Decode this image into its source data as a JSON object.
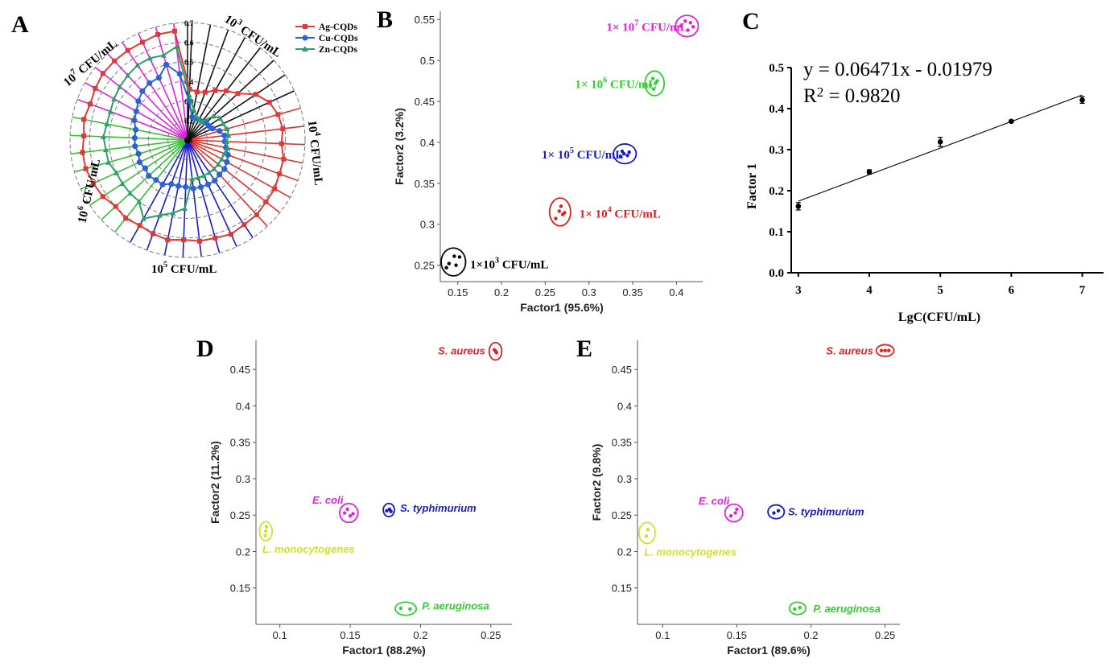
{
  "panels": {
    "A": {
      "letter": "A"
    },
    "B": {
      "letter": "B"
    },
    "C": {
      "letter": "C"
    },
    "D": {
      "letter": "D"
    },
    "E": {
      "letter": "E"
    }
  },
  "chart_data": [
    {
      "panel": "A",
      "type": "radar",
      "radial_ticks": [
        "0.1",
        "0.2",
        "0.3",
        "0.4",
        "0.5",
        "0.6",
        "0.7"
      ],
      "rmin": 0.1,
      "rmax": 0.7,
      "group_labels": [
        {
          "pre": "10",
          "sup": "3",
          "post": " CFU/mL"
        },
        {
          "pre": "10",
          "sup": "4",
          "post": " CFU/mL"
        },
        {
          "pre": "10",
          "sup": "5",
          "post": " CFU/mL"
        },
        {
          "pre": "10",
          "sup": "6",
          "post": " CFU/mL"
        },
        {
          "pre": "10",
          "sup": "7",
          "post": " CFU/mL"
        }
      ],
      "group_colors": [
        "#111111",
        "#e03030",
        "#1a1acc",
        "#30c030",
        "#e020e0"
      ],
      "series_colors": {
        "Ag-CQDs": "#e03838",
        "Cu-CQDs": "#2b62d6",
        "Zn-CQDs": "#2f9e6a"
      },
      "legend": [
        {
          "name": "Ag-CQDs",
          "color": "#e03838",
          "marker": "square"
        },
        {
          "name": "Cu-CQDs",
          "color": "#2b62d6",
          "marker": "circle"
        },
        {
          "name": "Zn-CQDs",
          "color": "#2f9e6a",
          "marker": "triangle"
        }
      ],
      "series": [
        {
          "name": "Ag-CQDs",
          "values": [
            0.36,
            0.35,
            0.36,
            0.39,
            0.42,
            0.45,
            0.52,
            0.56,
            0.58,
            0.59,
            0.58,
            0.6,
            0.6,
            0.61,
            0.61,
            0.62,
            0.62,
            0.63,
            0.62,
            0.62,
            0.61,
            0.62,
            0.61,
            0.6,
            0.61,
            0.6,
            0.62,
            0.63,
            0.64,
            0.64,
            0.63,
            0.64,
            0.63,
            0.64,
            0.65,
            0.65,
            0.65,
            0.65,
            0.66,
            0.66
          ]
        },
        {
          "name": "Cu-CQDs",
          "values": [
            0.3,
            0.22,
            0.22,
            0.22,
            0.22,
            0.23,
            0.23,
            0.24,
            0.27,
            0.29,
            0.29,
            0.3,
            0.32,
            0.33,
            0.34,
            0.34,
            0.35,
            0.35,
            0.35,
            0.35,
            0.34,
            0.34,
            0.34,
            0.36,
            0.36,
            0.37,
            0.36,
            0.37,
            0.36,
            0.37,
            0.37,
            0.37,
            0.39,
            0.4,
            0.42,
            0.44,
            0.45,
            0.45,
            0.5,
            0.44
          ]
        },
        {
          "name": "Zn-CQDs",
          "values": [
            0.33,
            0.26,
            0.23,
            0.22,
            0.22,
            0.28,
            0.3,
            0.3,
            0.31,
            0.31,
            0.3,
            0.31,
            0.3,
            0.3,
            0.3,
            0.3,
            0.3,
            0.3,
            0.3,
            0.3,
            0.45,
            0.48,
            0.51,
            0.56,
            0.5,
            0.5,
            0.5,
            0.5,
            0.52,
            0.52,
            0.53,
            0.52,
            0.52,
            0.53,
            0.54,
            0.55,
            0.56,
            0.56,
            0.55,
            0.58
          ]
        }
      ]
    },
    {
      "panel": "B",
      "type": "scatter",
      "xlabel": "Factor1 (95.6%)",
      "ylabel": "Factor2 (3.2%)",
      "xlim": [
        0.13,
        0.43
      ],
      "ylim": [
        0.23,
        0.56
      ],
      "xticks": [
        0.15,
        0.2,
        0.25,
        0.3,
        0.35,
        0.4
      ],
      "xtick_labels": [
        "0.15",
        "0.2",
        "0.25",
        "0.3",
        "0.35",
        "0.4"
      ],
      "yticks": [
        0.25,
        0.3,
        0.35,
        0.4,
        0.45,
        0.5,
        0.55
      ],
      "ytick_labels": [
        "0.25",
        "0.3",
        "0.35",
        "0.4",
        "0.45",
        "0.5",
        "0.55"
      ],
      "groups": [
        {
          "label": "1×10",
          "sup": "3",
          "post": " CFU/mL",
          "color": "#000000",
          "points": [
            [
              0.137,
              0.247
            ],
            [
              0.14,
              0.252
            ],
            [
              0.146,
              0.261
            ],
            [
              0.148,
              0.25
            ],
            [
              0.152,
              0.26
            ]
          ],
          "ellipse": [
            0.145,
            0.254,
            0.014,
            0.017
          ],
          "label_pos": [
            0.164,
            0.252
          ]
        },
        {
          "label": "1× 10",
          "sup": "4",
          "post": " CFU/mL",
          "color": "#e02020",
          "points": [
            [
              0.262,
              0.307
            ],
            [
              0.266,
              0.316
            ],
            [
              0.27,
              0.312
            ],
            [
              0.268,
              0.322
            ],
            [
              0.272,
              0.314
            ]
          ],
          "ellipse": [
            0.267,
            0.315,
            0.012,
            0.017
          ],
          "label_pos": [
            0.289,
            0.314
          ]
        },
        {
          "label": "1× 10",
          "sup": "5",
          "post": " CFU/mL",
          "color": "#1a1acc",
          "points": [
            [
              0.336,
              0.383
            ],
            [
              0.34,
              0.386
            ],
            [
              0.344,
              0.384
            ],
            [
              0.346,
              0.388
            ],
            [
              0.338,
              0.389
            ]
          ],
          "ellipse": [
            0.341,
            0.386,
            0.013,
            0.012
          ],
          "label_pos": [
            0.246,
            0.386
          ]
        },
        {
          "label": "1× 10",
          "sup": "6",
          "post": " CFU/mL",
          "color": "#30d030",
          "points": [
            [
              0.37,
              0.47
            ],
            [
              0.373,
              0.478
            ],
            [
              0.376,
              0.472
            ],
            [
              0.374,
              0.465
            ],
            [
              0.378,
              0.475
            ]
          ],
          "ellipse": [
            0.375,
            0.472,
            0.011,
            0.015
          ],
          "label_pos": [
            0.284,
            0.472
          ]
        },
        {
          "label": "1× 10",
          "sup": "7",
          "post": " CFU/mL",
          "color": "#e020e0",
          "points": [
            [
              0.405,
              0.542
            ],
            [
              0.41,
              0.548
            ],
            [
              0.413,
              0.537
            ],
            [
              0.416,
              0.546
            ],
            [
              0.419,
              0.541
            ]
          ],
          "ellipse": [
            0.412,
            0.542,
            0.013,
            0.013
          ],
          "label_pos": [
            0.32,
            0.542
          ]
        }
      ]
    },
    {
      "panel": "C",
      "type": "scatter-fit",
      "xlabel": "LgC(CFU/mL)",
      "ylabel": "Factor 1",
      "xlim": [
        2.9,
        7.3
      ],
      "ylim": [
        0,
        0.5
      ],
      "xticks": [
        3,
        4,
        5,
        6,
        7
      ],
      "xtick_labels": [
        "3",
        "4",
        "5",
        "6",
        "7"
      ],
      "yticks": [
        0,
        0.1,
        0.2,
        0.3,
        0.4,
        0.5
      ],
      "ytick_labels": [
        "0.0",
        "0.1",
        "0.2",
        "0.3",
        "0.4",
        "0.5"
      ],
      "x": [
        3,
        4,
        5,
        6,
        7
      ],
      "y": [
        0.162,
        0.246,
        0.319,
        0.369,
        0.421
      ],
      "yerr": [
        0.009,
        0.005,
        0.011,
        0.003,
        0.008
      ],
      "fit": {
        "slope": 0.06471,
        "intercept": -0.01979
      },
      "equation": "y = 0.06471x - 0.01979",
      "r2_prefix": "R",
      "r2_sup": "2",
      "r2_suffix": " = 0.9820"
    },
    {
      "panel": "D",
      "type": "scatter",
      "xlabel": "Factor1 (88.2%)",
      "ylabel": "Factor2 (11.2%)",
      "xlim": [
        0.083,
        0.265
      ],
      "ylim": [
        0.1,
        0.49
      ],
      "xticks": [
        0.1,
        0.15,
        0.2,
        0.25
      ],
      "xtick_labels": [
        "0.1",
        "0.15",
        "0.2",
        "0.25"
      ],
      "yticks": [
        0.15,
        0.2,
        0.25,
        0.3,
        0.35,
        0.4,
        0.45
      ],
      "ytick_labels": [
        "0.15",
        "0.2",
        "0.25",
        "0.3",
        "0.35",
        "0.4",
        "0.45"
      ],
      "groups": [
        {
          "label": "S. aureus",
          "color": "#e02020",
          "points": [
            [
              0.2525,
              0.477
            ],
            [
              0.2535,
              0.475
            ],
            [
              0.254,
              0.473
            ]
          ],
          "ellipse": [
            0.2533,
            0.475,
            0.0045,
            0.012
          ],
          "label_pos": [
            0.246,
            0.476
          ],
          "anchor": "end"
        },
        {
          "label": "E. coli",
          "color": "#e020e0",
          "points": [
            [
              0.146,
              0.253
            ],
            [
              0.148,
              0.258
            ],
            [
              0.15,
              0.249
            ],
            [
              0.152,
              0.252
            ]
          ],
          "ellipse": [
            0.149,
            0.253,
            0.0065,
            0.013
          ],
          "label_pos": [
            0.145,
            0.271
          ],
          "anchor": "end"
        },
        {
          "label": "S. typhimurium",
          "color": "#1a1acc",
          "points": [
            [
              0.176,
              0.256
            ],
            [
              0.178,
              0.258
            ],
            [
              0.179,
              0.255
            ]
          ],
          "ellipse": [
            0.1775,
            0.257,
            0.004,
            0.009
          ],
          "label_pos": [
            0.1855,
            0.26
          ],
          "anchor": "start"
        },
        {
          "label": "L. monocytogenes",
          "color": "#d0e030",
          "points": [
            [
              0.0895,
              0.222
            ],
            [
              0.09,
              0.228
            ],
            [
              0.0905,
              0.234
            ]
          ],
          "ellipse": [
            0.09,
            0.228,
            0.0045,
            0.013
          ],
          "label_pos": [
            0.0875,
            0.204
          ],
          "anchor": "start"
        },
        {
          "label": "P. aeruginosa",
          "color": "#30d030",
          "points": [
            [
              0.186,
              0.122
            ],
            [
              0.1925,
              0.121
            ]
          ],
          "ellipse": [
            0.1895,
            0.1215,
            0.0075,
            0.009
          ],
          "label_pos": [
            0.201,
            0.126
          ],
          "anchor": "start"
        }
      ]
    },
    {
      "panel": "E",
      "type": "scatter",
      "xlabel": "Factor1 (89.6%)",
      "ylabel": "Factor2 (9.8%)",
      "xlim": [
        0.083,
        0.26
      ],
      "ylim": [
        0.1,
        0.49
      ],
      "xticks": [
        0.1,
        0.15,
        0.2,
        0.25
      ],
      "xtick_labels": [
        "0.1",
        "0.15",
        "0.2",
        "0.25"
      ],
      "yticks": [
        0.15,
        0.2,
        0.25,
        0.3,
        0.35,
        0.4,
        0.45
      ],
      "ytick_labels": [
        "0.15",
        "0.2",
        "0.25",
        "0.3",
        "0.35",
        "0.4",
        "0.45"
      ],
      "groups": [
        {
          "label": "S. aureus",
          "color": "#e02020",
          "points": [
            [
              0.2475,
              0.476
            ],
            [
              0.25,
              0.476
            ],
            [
              0.2525,
              0.476
            ]
          ],
          "ellipse": [
            0.25,
            0.476,
            0.006,
            0.008
          ],
          "label_pos": [
            0.242,
            0.476
          ],
          "anchor": "end"
        },
        {
          "label": "E. coli",
          "color": "#e020e0",
          "points": [
            [
              0.146,
              0.249
            ],
            [
              0.149,
              0.253
            ],
            [
              0.15,
              0.258
            ]
          ],
          "ellipse": [
            0.148,
            0.253,
            0.006,
            0.012
          ],
          "label_pos": [
            0.145,
            0.27
          ],
          "anchor": "end"
        },
        {
          "label": "S. typhimurium",
          "color": "#1a1acc",
          "points": [
            [
              0.175,
              0.253
            ],
            [
              0.178,
              0.256
            ]
          ],
          "ellipse": [
            0.1765,
            0.2545,
            0.0055,
            0.0095
          ],
          "label_pos": [
            0.1845,
            0.255
          ],
          "anchor": "start"
        },
        {
          "label": "L. monocytogenes",
          "color": "#d0e030",
          "points": [
            [
              0.089,
              0.221
            ],
            [
              0.09,
              0.23
            ]
          ],
          "ellipse": [
            0.0895,
            0.2255,
            0.0055,
            0.0145
          ],
          "label_pos": [
            0.0875,
            0.2
          ],
          "anchor": "start"
        },
        {
          "label": "P. aeruginosa",
          "color": "#30d030",
          "points": [
            [
              0.189,
              0.121
            ],
            [
              0.1925,
              0.123
            ]
          ],
          "ellipse": [
            0.191,
            0.122,
            0.0055,
            0.0085
          ],
          "label_pos": [
            0.2015,
            0.122
          ],
          "anchor": "start"
        }
      ]
    }
  ]
}
